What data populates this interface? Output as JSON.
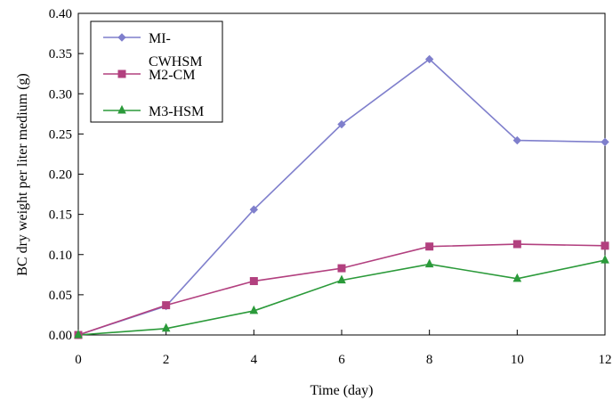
{
  "chart_data": {
    "type": "line",
    "title": "",
    "xlabel": "Time (day)",
    "ylabel": "BC dry weight per liter medium (g)",
    "xlim": [
      0,
      12
    ],
    "ylim": [
      0,
      0.4
    ],
    "x": [
      0,
      2,
      4,
      6,
      8,
      10,
      12
    ],
    "x_tick_labels": [
      "0",
      "2",
      "4",
      "6",
      "8",
      "10",
      "12"
    ],
    "y_ticks": [
      0,
      0.05,
      0.1,
      0.15,
      0.2,
      0.25,
      0.3,
      0.35,
      0.4
    ],
    "y_tick_labels": [
      "0.00",
      "0.05",
      "0.10",
      "0.15",
      "0.20",
      "0.25",
      "0.30",
      "0.35",
      "0.40"
    ],
    "grid": false,
    "legend_position": "top-left",
    "series": [
      {
        "name_lines": [
          "MI-",
          "CWHSM"
        ],
        "color": "#7f7fcc",
        "marker": "diamond",
        "values": [
          0.0,
          0.036,
          0.156,
          0.262,
          0.343,
          0.242,
          0.24
        ]
      },
      {
        "name": "M2-CM",
        "color": "#b2407f",
        "marker": "square",
        "values": [
          0.0,
          0.037,
          0.067,
          0.083,
          0.11,
          0.113,
          0.111
        ]
      },
      {
        "name": "M3-HSM",
        "color": "#2b9a3a",
        "marker": "triangle",
        "values": [
          0.0,
          0.008,
          0.03,
          0.068,
          0.088,
          0.07,
          0.093
        ]
      }
    ]
  }
}
